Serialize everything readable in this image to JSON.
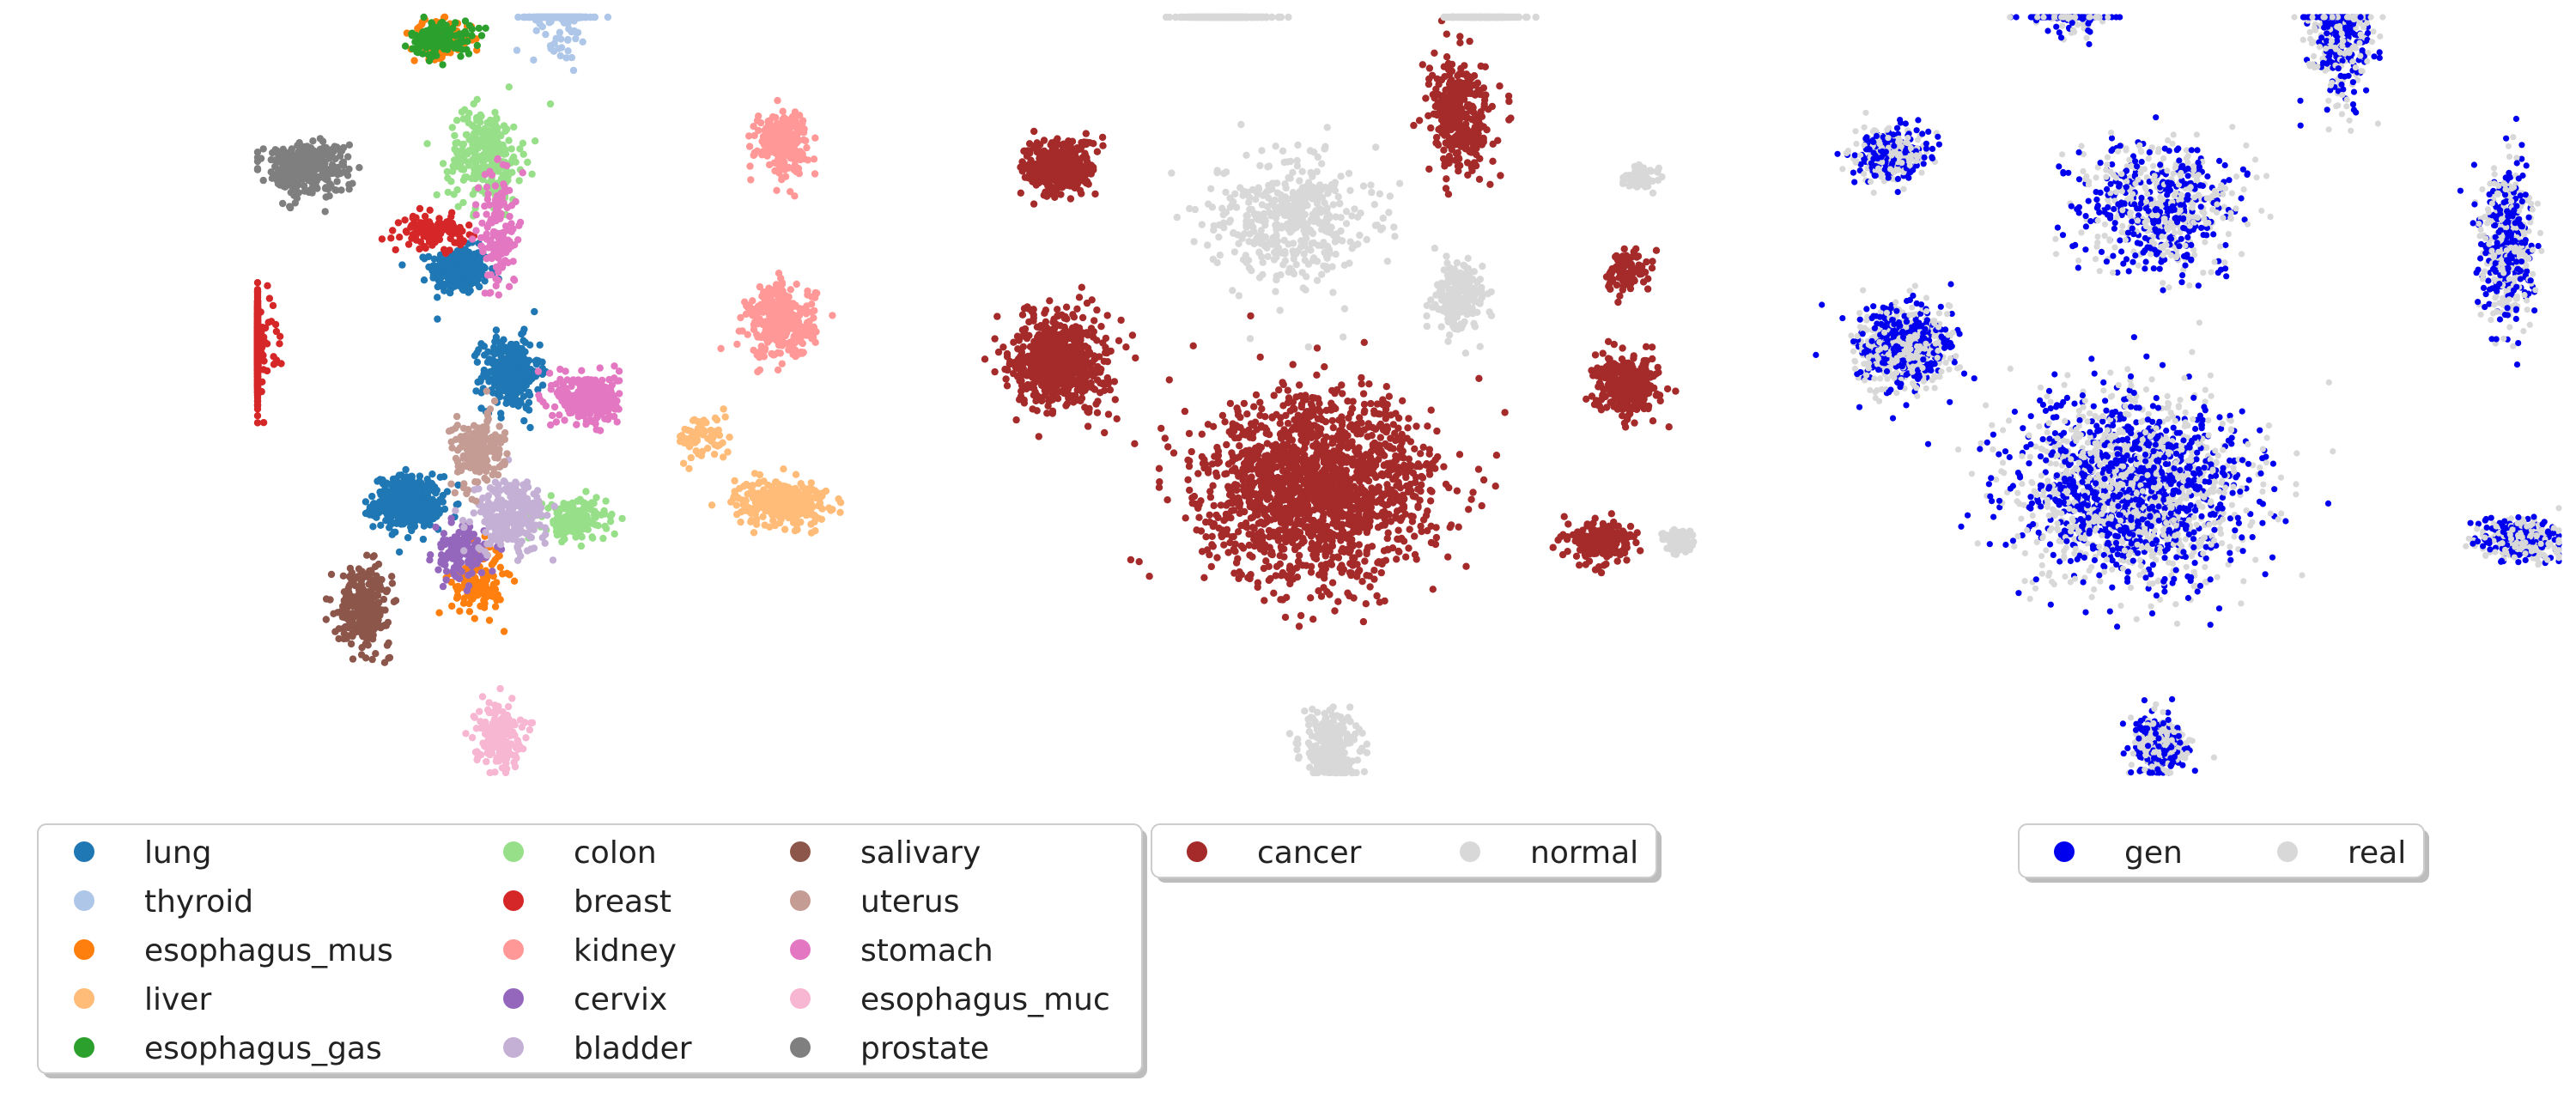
{
  "chart_data": [
    {
      "type": "scatter",
      "colored_by": "tissue",
      "axes_visible": false,
      "legend_position": "bottom",
      "legend_columns": 3,
      "series": [
        {
          "name": "lung",
          "color": "#1f77b4",
          "clusters": [
            [
              -0.55,
              0.45,
              0.11,
              0.09,
              260
            ],
            [
              -0.75,
              -0.45,
              0.13,
              0.1,
              380
            ],
            [
              -0.35,
              0.05,
              0.11,
              0.14,
              300
            ]
          ]
        },
        {
          "name": "thyroid",
          "color": "#aec7e8",
          "clusters": [
            [
              -0.15,
              1.6,
              0.11,
              0.28,
              360
            ]
          ]
        },
        {
          "name": "esophagus_mus",
          "color": "#ff7f0e",
          "clusters": [
            [
              -0.62,
              1.35,
              0.12,
              0.07,
              110
            ],
            [
              -0.48,
              -0.75,
              0.1,
              0.14,
              150
            ]
          ]
        },
        {
          "name": "liver",
          "color": "#ffbb78",
          "clusters": [
            [
              0.4,
              -0.2,
              0.1,
              0.09,
              70
            ],
            [
              0.7,
              -0.45,
              0.18,
              0.09,
              280
            ]
          ]
        },
        {
          "name": "esophagus_gas",
          "color": "#2ca02c",
          "clusters": [
            [
              -0.62,
              1.35,
              0.12,
              0.07,
              130
            ]
          ]
        },
        {
          "name": "colon",
          "color": "#98df8a",
          "clusters": [
            [
              -0.45,
              0.9,
              0.14,
              0.18,
              280
            ],
            [
              -0.1,
              -0.52,
              0.12,
              0.08,
              170
            ]
          ]
        },
        {
          "name": "breast",
          "color": "#d62728",
          "clusters": [
            [
              -1.45,
              0.15,
              0.17,
              0.17,
              700
            ],
            [
              -0.65,
              0.6,
              0.12,
              0.06,
              120
            ]
          ]
        },
        {
          "name": "kidney",
          "color": "#ff9896",
          "clusters": [
            [
              0.7,
              0.95,
              0.1,
              0.12,
              220
            ],
            [
              0.7,
              0.25,
              0.13,
              0.14,
              320
            ]
          ]
        },
        {
          "name": "cervix",
          "color": "#9467bd",
          "clusters": [
            [
              -0.55,
              -0.65,
              0.1,
              0.1,
              140
            ]
          ]
        },
        {
          "name": "bladder",
          "color": "#c5b0d5",
          "clusters": [
            [
              -0.35,
              -0.5,
              0.14,
              0.14,
              260
            ]
          ]
        },
        {
          "name": "salivary",
          "color": "#8c564b",
          "clusters": [
            [
              -0.92,
              -0.85,
              0.1,
              0.15,
              280
            ]
          ]
        },
        {
          "name": "uterus",
          "color": "#c49c94",
          "clusters": [
            [
              -0.48,
              -0.25,
              0.1,
              0.14,
              180
            ]
          ]
        },
        {
          "name": "stomach",
          "color": "#e377c2",
          "clusters": [
            [
              -0.05,
              -0.05,
              0.12,
              0.1,
              300
            ],
            [
              -0.4,
              0.6,
              0.07,
              0.25,
              140
            ]
          ]
        },
        {
          "name": "esophagus_muc",
          "color": "#f7b6d2",
          "clusters": [
            [
              -0.4,
              -1.35,
              0.09,
              0.12,
              180
            ]
          ]
        },
        {
          "name": "prostate",
          "color": "#7f7f7f",
          "clusters": [
            [
              -1.15,
              0.85,
              0.16,
              0.1,
              360
            ]
          ]
        }
      ]
    },
    {
      "type": "scatter",
      "colored_by": "condition",
      "axes_visible": false,
      "legend_position": "bottom",
      "legend_columns": 2,
      "series": [
        {
          "name": "cancer",
          "color": "#a52a2a",
          "clusters": [
            [
              -1.4,
              0.85,
              0.14,
              0.11,
              320
            ],
            [
              0.15,
              1.05,
              0.12,
              0.22,
              340
            ],
            [
              0.8,
              0.0,
              0.12,
              0.11,
              300
            ],
            [
              0.8,
              0.45,
              0.08,
              0.08,
              110
            ],
            [
              -1.4,
              0.1,
              0.18,
              0.18,
              650
            ],
            [
              -0.4,
              -0.4,
              0.45,
              0.35,
              1700
            ],
            [
              0.7,
              -0.6,
              0.12,
              0.08,
              200
            ]
          ]
        },
        {
          "name": "normal",
          "color": "#d8d8d8",
          "clusters": [
            [
              -0.75,
              1.6,
              0.16,
              0.1,
              300
            ],
            [
              0.25,
              1.7,
              0.13,
              0.09,
              170
            ],
            [
              -0.5,
              0.65,
              0.3,
              0.25,
              430
            ],
            [
              0.15,
              0.35,
              0.1,
              0.13,
              200
            ],
            [
              0.85,
              0.8,
              0.06,
              0.04,
              60
            ],
            [
              1.0,
              -0.6,
              0.06,
              0.05,
              80
            ],
            [
              -0.35,
              -1.4,
              0.11,
              0.14,
              260
            ]
          ]
        }
      ]
    },
    {
      "type": "scatter",
      "colored_by": "source",
      "axes_visible": false,
      "legend_position": "bottom",
      "legend_columns": 2,
      "series": [
        {
          "name": "gen",
          "color": "#0000ee",
          "clusters": [
            [
              -0.75,
              1.5,
              0.13,
              0.11,
              170
            ],
            [
              0.3,
              1.4,
              0.12,
              0.28,
              220
            ],
            [
              -1.45,
              0.9,
              0.14,
              0.1,
              200
            ],
            [
              -0.4,
              0.7,
              0.3,
              0.25,
              330
            ],
            [
              0.95,
              0.55,
              0.1,
              0.3,
              280
            ],
            [
              -1.4,
              0.15,
              0.18,
              0.16,
              380
            ],
            [
              -0.5,
              -0.4,
              0.45,
              0.35,
              1000
            ],
            [
              1.0,
              -0.6,
              0.16,
              0.08,
              170
            ],
            [
              -0.4,
              -1.4,
              0.1,
              0.13,
              150
            ]
          ]
        },
        {
          "name": "real",
          "color": "#d8d8d8",
          "clusters": [
            [
              -0.75,
              1.5,
              0.13,
              0.11,
              170
            ],
            [
              0.3,
              1.4,
              0.12,
              0.28,
              220
            ],
            [
              -1.45,
              0.9,
              0.14,
              0.1,
              200
            ],
            [
              -0.4,
              0.7,
              0.3,
              0.25,
              330
            ],
            [
              0.95,
              0.55,
              0.1,
              0.3,
              280
            ],
            [
              -1.4,
              0.15,
              0.18,
              0.16,
              380
            ],
            [
              -0.5,
              -0.4,
              0.45,
              0.35,
              1000
            ],
            [
              1.0,
              -0.6,
              0.16,
              0.08,
              170
            ],
            [
              -0.4,
              -1.4,
              0.1,
              0.13,
              150
            ]
          ]
        }
      ]
    }
  ]
}
